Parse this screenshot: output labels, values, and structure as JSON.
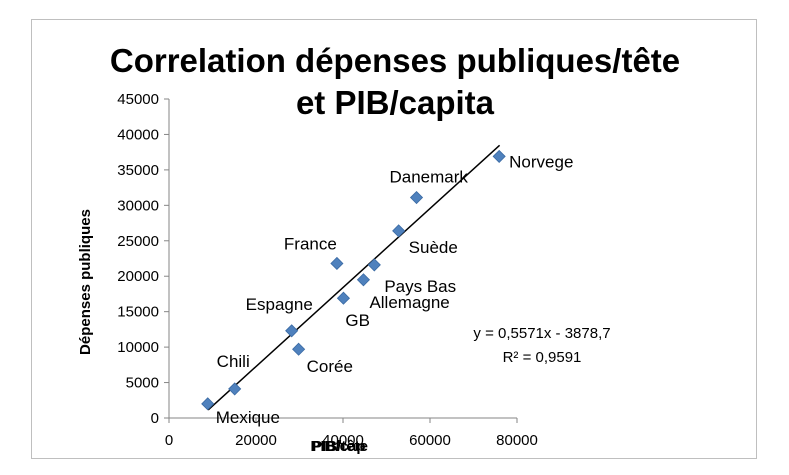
{
  "chart_data": {
    "type": "scatter",
    "title": "Correlation dépenses publiques/tête et PIB/capita",
    "title_lines": [
      "Correlation dépenses publiques/tête",
      "et PIB/capita"
    ],
    "xlabel_overlapped": [
      "PIB/tête",
      "PIB/cap"
    ],
    "ylabel": "Dépenses publiques",
    "xlim": [
      0,
      80000
    ],
    "ylim": [
      0,
      45000
    ],
    "x_ticks": [
      "0",
      "20000",
      "40000",
      "60000",
      "80000"
    ],
    "y_ticks": [
      "0",
      "5000",
      "10000",
      "15000",
      "20000",
      "25000",
      "30000",
      "35000",
      "40000",
      "45000"
    ],
    "marker_color": "#4f81bd",
    "points": [
      {
        "label": "Mexique",
        "x": 8900,
        "y": 2000
      },
      {
        "label": "Chili",
        "x": 15100,
        "y": 4100
      },
      {
        "label": "Corée",
        "x": 29800,
        "y": 9700
      },
      {
        "label": "Espagne",
        "x": 28200,
        "y": 12300
      },
      {
        "label": "GB",
        "x": 40100,
        "y": 16900
      },
      {
        "label": "France",
        "x": 38600,
        "y": 21800
      },
      {
        "label": "Allemagne",
        "x": 44700,
        "y": 19500
      },
      {
        "label": "Pays Bas",
        "x": 47200,
        "y": 21600
      },
      {
        "label": "Suède",
        "x": 52800,
        "y": 26400
      },
      {
        "label": "Danemark",
        "x": 56900,
        "y": 31100
      },
      {
        "label": "Norvege",
        "x": 75900,
        "y": 36900
      }
    ],
    "trendline": {
      "slope": 0.5571,
      "intercept": -3878.7,
      "x_range": [
        9000,
        76000
      ],
      "equation": "y = 0,5571x - 3878,7",
      "r2": "R² = 0,9591"
    },
    "grid": false,
    "legend": "none"
  }
}
